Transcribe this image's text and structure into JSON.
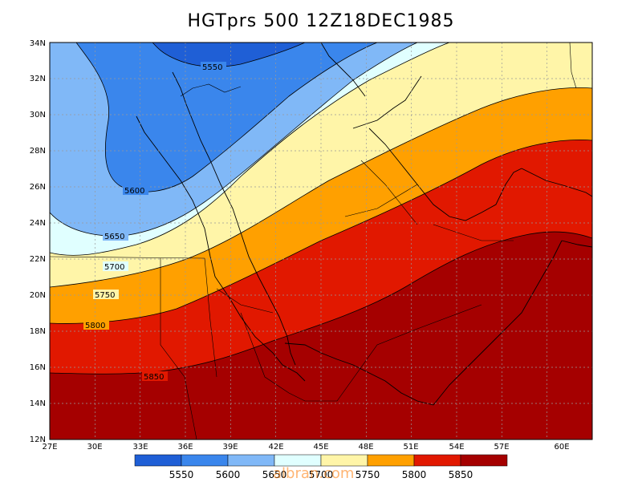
{
  "title": "HGTprs 500 12Z18DEC1985",
  "map": {
    "lon_range": [
      27,
      63
    ],
    "lat_range": [
      12,
      34
    ],
    "x_ticks": [
      "27E",
      "30E",
      "33E",
      "36E",
      "39E",
      "42E",
      "45E",
      "48E",
      "51E",
      "54E",
      "57E",
      "60E"
    ],
    "y_ticks": [
      "12N",
      "14N",
      "16N",
      "18N",
      "20N",
      "22N",
      "24N",
      "26N",
      "28N",
      "30N",
      "32N",
      "34N"
    ],
    "contour_labels": [
      "5550",
      "5600",
      "5650",
      "5700",
      "5750",
      "5800",
      "5850"
    ]
  },
  "colorbar": {
    "labels": [
      "5550",
      "5600",
      "5650",
      "5700",
      "5750",
      "5800",
      "5850"
    ],
    "colors": [
      "#1f5fd6",
      "#3a86ec",
      "#80b8f7",
      "#e0ffff",
      "#fff5a8",
      "#ffa000",
      "#e11800",
      "#a50000"
    ]
  },
  "watermark": "albran.com"
}
